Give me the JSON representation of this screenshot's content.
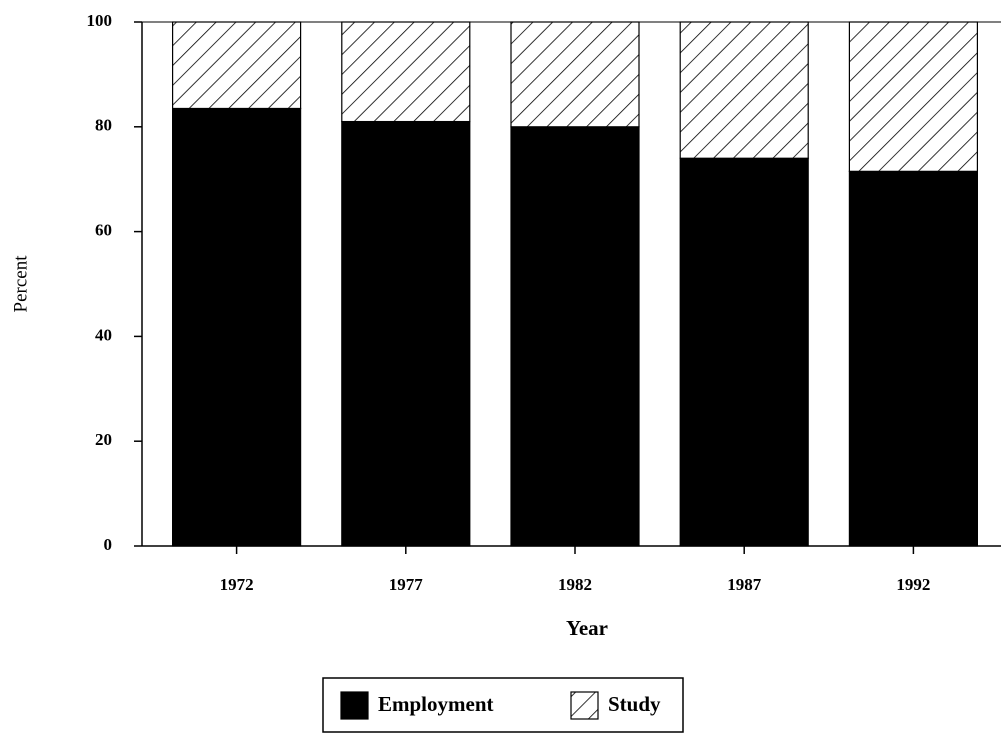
{
  "chart_data": {
    "type": "stacked_bar",
    "x_label": "Year",
    "y_label": "Percent",
    "categories": [
      "1972",
      "1977",
      "1982",
      "1987",
      "1992"
    ],
    "series": [
      {
        "name": "Employment",
        "color": "#000000",
        "values": [
          83.5,
          81,
          80,
          74,
          71.5
        ]
      },
      {
        "name": "Study",
        "color": "#ffffff",
        "pattern": "hatch",
        "values": [
          16.5,
          19,
          20,
          26,
          28.5
        ]
      }
    ],
    "ylim": [
      0,
      100
    ],
    "yticks": [
      0,
      20,
      40,
      60,
      80,
      100
    ],
    "grid": false,
    "legend": "bottom"
  }
}
